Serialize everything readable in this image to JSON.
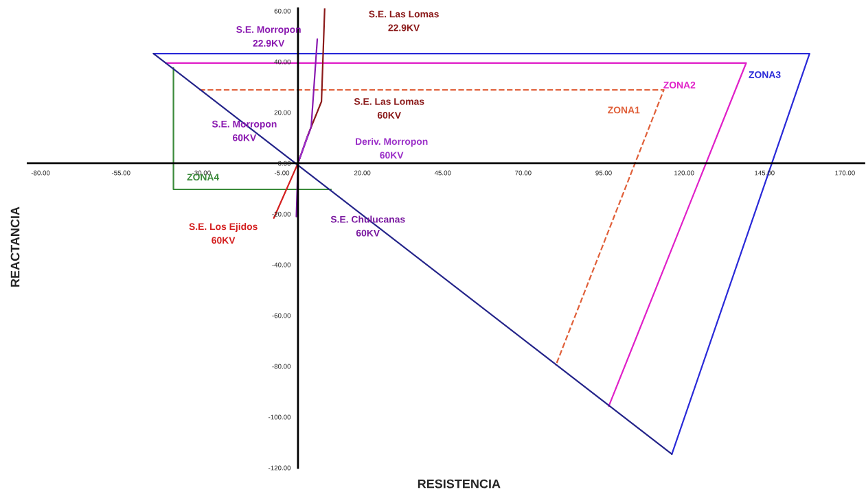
{
  "chart_data": {
    "type": "line",
    "xlabel": "RESISTENCIA",
    "ylabel": "REACTANCIA",
    "xlim": [
      -84,
      176
    ],
    "ylim": [
      -120,
      61
    ],
    "xticks": [
      {
        "value": -80,
        "label": "-80.00"
      },
      {
        "value": -55,
        "label": "-55.00"
      },
      {
        "value": -30,
        "label": "-30.00"
      },
      {
        "value": -5,
        "label": "-5.00"
      },
      {
        "value": 20,
        "label": "20.00"
      },
      {
        "value": 45,
        "label": "45.00"
      },
      {
        "value": 70,
        "label": "70.00"
      },
      {
        "value": 95,
        "label": "95.00"
      },
      {
        "value": 120,
        "label": "120.00"
      },
      {
        "value": 145,
        "label": "145.00"
      },
      {
        "value": 170,
        "label": "170.00"
      }
    ],
    "yticks": [
      {
        "value": -120,
        "label": "-120.00"
      },
      {
        "value": -100,
        "label": "-100.00"
      },
      {
        "value": -80,
        "label": "-80.00"
      },
      {
        "value": -60,
        "label": "-60.00"
      },
      {
        "value": -40,
        "label": "-40.00"
      },
      {
        "value": -20,
        "label": "-20.00"
      },
      {
        "value": 0,
        "label": "0.00"
      },
      {
        "value": 20,
        "label": "20.00"
      },
      {
        "value": 40,
        "label": "40.00"
      },
      {
        "value": 60,
        "label": "60.00"
      }
    ],
    "series": [
      {
        "color": "#e0603a",
        "line_style": "dashed",
        "x": [
          -30.6,
          113.7,
          80.1
        ],
        "values": [
          28.9,
          28.9,
          -79.7
        ]
      },
      {
        "color": "#e020c8",
        "x": [
          -41.2,
          139.3,
          96.6
        ],
        "values": [
          39.5,
          39.5,
          -95.7
        ]
      },
      {
        "color": "#2a2ad8",
        "x": [
          -44.9,
          159,
          116.2
        ],
        "values": [
          43.2,
          43.2,
          -114.6
        ]
      },
      {
        "color": "#3a8a3a",
        "x": [
          -38.7,
          -38.7,
          10.3
        ],
        "values": [
          37.5,
          -10.3,
          -10.3
        ]
      },
      {
        "color": "#8b1a1a",
        "x": [
          0,
          3,
          7.3,
          8.3
        ],
        "values": [
          0,
          10.8,
          24.3,
          61
        ]
      },
      {
        "color": "#8a1ab0",
        "x": [
          0,
          4.1,
          6
        ],
        "values": [
          0,
          14.3,
          48.9
        ]
      },
      {
        "color": "#9b30c8",
        "x": [
          0,
          3
        ],
        "values": [
          0,
          10.8
        ]
      },
      {
        "color": "#d42020",
        "x": [
          0,
          -7.5
        ],
        "values": [
          0,
          -21.6
        ]
      },
      {
        "color": "#7a1aa0",
        "x": [
          0,
          -0.5
        ],
        "values": [
          0,
          -21
        ]
      },
      {
        "color": "#24248a",
        "x": [
          -44.9,
          116.2
        ],
        "values": [
          43.2,
          -114.6
        ]
      }
    ],
    "annotations": [
      "ZONA1",
      "ZONA2",
      "ZONA3",
      "ZONA4",
      "S.E. Las Lomas\n22.9KV",
      "S.E. Morropon\n22.9KV",
      "S.E. Las Lomas\n60KV",
      "S.E. Morropon\n60KV",
      "Deriv. Morropon\n60KV",
      "S.E. Los Ejidos\n60KV",
      "S.E. Chulucanas\n60KV"
    ]
  }
}
